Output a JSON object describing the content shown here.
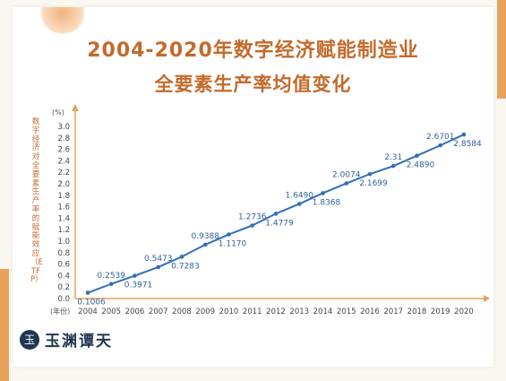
{
  "header": {
    "title_line1": "2004-2020年数字经济赋能制造业",
    "title_line2": "全要素生产率均值变化"
  },
  "brand": {
    "logo_text": "玉渊谭天",
    "logo_mark": "玉"
  },
  "colors": {
    "title": "#c46a2a",
    "line": "#2f6fb5",
    "axis": "#e8a15a",
    "accent": "#e8a15a"
  },
  "chart_data": {
    "type": "line",
    "title": "2004-2020年数字经济赋能制造业全要素生产率均值变化",
    "ylabel": "数字经济对全要素生产率的赋能效应（ETFP）",
    "yunit": "(%)",
    "xunit": "(年份)",
    "ylim": [
      0,
      3.0
    ],
    "yticks": [
      "0.0",
      "0.2",
      "0.4",
      "0.6",
      "0.8",
      "1.0",
      "1.2",
      "1.4",
      "1.6",
      "1.8",
      "2.0",
      "2.2",
      "2.4",
      "2.6",
      "2.8",
      "3.0"
    ],
    "categories": [
      "2004",
      "2005",
      "2006",
      "2007",
      "2008",
      "2009",
      "2010",
      "2011",
      "2012",
      "2013",
      "2014",
      "2015",
      "2016",
      "2017",
      "2018",
      "2019",
      "2020"
    ],
    "values": [
      0.1006,
      0.2539,
      0.3971,
      0.5473,
      0.7283,
      0.9388,
      1.117,
      1.2736,
      1.4779,
      1.649,
      1.8368,
      2.0074,
      2.1699,
      2.31,
      2.489,
      2.6701,
      2.8584
    ],
    "labels": [
      "0.1006",
      "0.2539",
      "0.3971",
      "0.5473",
      "0.7283",
      "0.9388",
      "1.1170",
      "1.2736",
      "1.4779",
      "1.6490",
      "1.8368",
      "2.0074",
      "2.1699",
      "2.31",
      "2.4890",
      "2.6701",
      "2.8584"
    ],
    "grid": false,
    "legend": "none"
  }
}
